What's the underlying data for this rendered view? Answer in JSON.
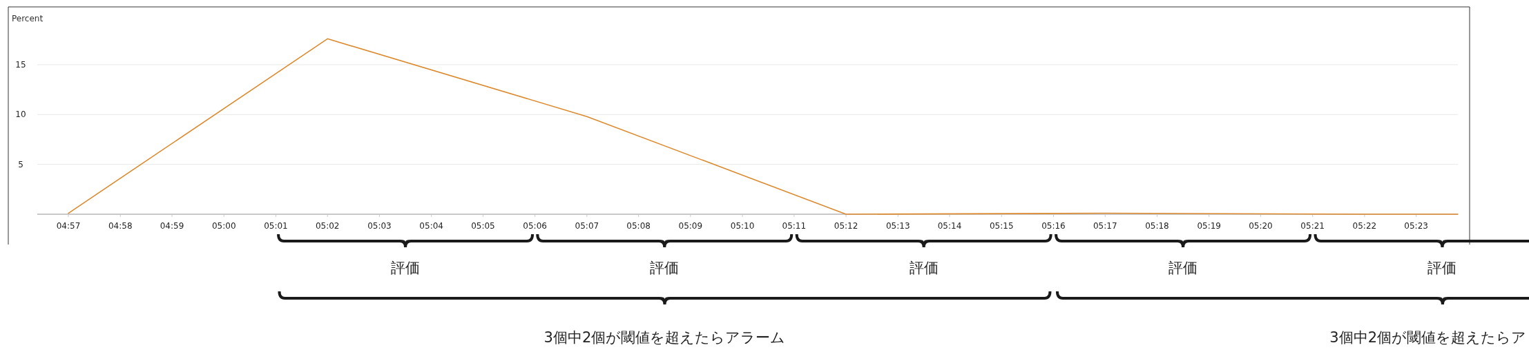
{
  "chart_data": {
    "type": "line",
    "ylabel": "Percent",
    "x": [
      4.95,
      5.0333,
      5.1167,
      5.2,
      5.2833,
      5.3667,
      5.3967
    ],
    "series": [
      {
        "color": "#dd8a2e",
        "values": [
          0.1,
          17.6,
          9.8,
          0,
          0.1,
          0,
          0
        ]
      }
    ],
    "xlim": [
      4.94,
      5.3967
    ],
    "xticks": [
      {
        "value": 4.95,
        "label": "04:57"
      },
      {
        "value": 4.9667,
        "label": "04:58"
      },
      {
        "value": 4.9833,
        "label": "04:59"
      },
      {
        "value": 5,
        "label": "05:00"
      },
      {
        "value": 5.0167,
        "label": "05:01"
      },
      {
        "value": 5.0333,
        "label": "05:02"
      },
      {
        "value": 5.05,
        "label": "05:03"
      },
      {
        "value": 5.0667,
        "label": "05:04"
      },
      {
        "value": 5.0833,
        "label": "05:05"
      },
      {
        "value": 5.1,
        "label": "05:06"
      },
      {
        "value": 5.1167,
        "label": "05:07"
      },
      {
        "value": 5.1333,
        "label": "05:08"
      },
      {
        "value": 5.15,
        "label": "05:09"
      },
      {
        "value": 5.1667,
        "label": "05:10"
      },
      {
        "value": 5.1833,
        "label": "05:11"
      },
      {
        "value": 5.2,
        "label": "05:12"
      },
      {
        "value": 5.2167,
        "label": "05:13"
      },
      {
        "value": 5.2333,
        "label": "05:14"
      },
      {
        "value": 5.25,
        "label": "05:15"
      },
      {
        "value": 5.2667,
        "label": "05:16"
      },
      {
        "value": 5.2833,
        "label": "05:17"
      },
      {
        "value": 5.3,
        "label": "05:18"
      },
      {
        "value": 5.3167,
        "label": "05:19"
      },
      {
        "value": 5.3333,
        "label": "05:20"
      },
      {
        "value": 5.35,
        "label": "05:21"
      },
      {
        "value": 5.3667,
        "label": "05:22"
      },
      {
        "value": 5.3833,
        "label": "05:23"
      }
    ],
    "ylim": [
      0,
      20.8
    ],
    "yticks": [
      5,
      10,
      15
    ],
    "grid": "y",
    "marker": "none",
    "line_style": "solid",
    "annotations": [
      "評価",
      "評価",
      "評価",
      "評価",
      "評価",
      "3個中2個が閾値を超えたらアラーム",
      "3個中2個が閾値を超えたらア"
    ]
  }
}
